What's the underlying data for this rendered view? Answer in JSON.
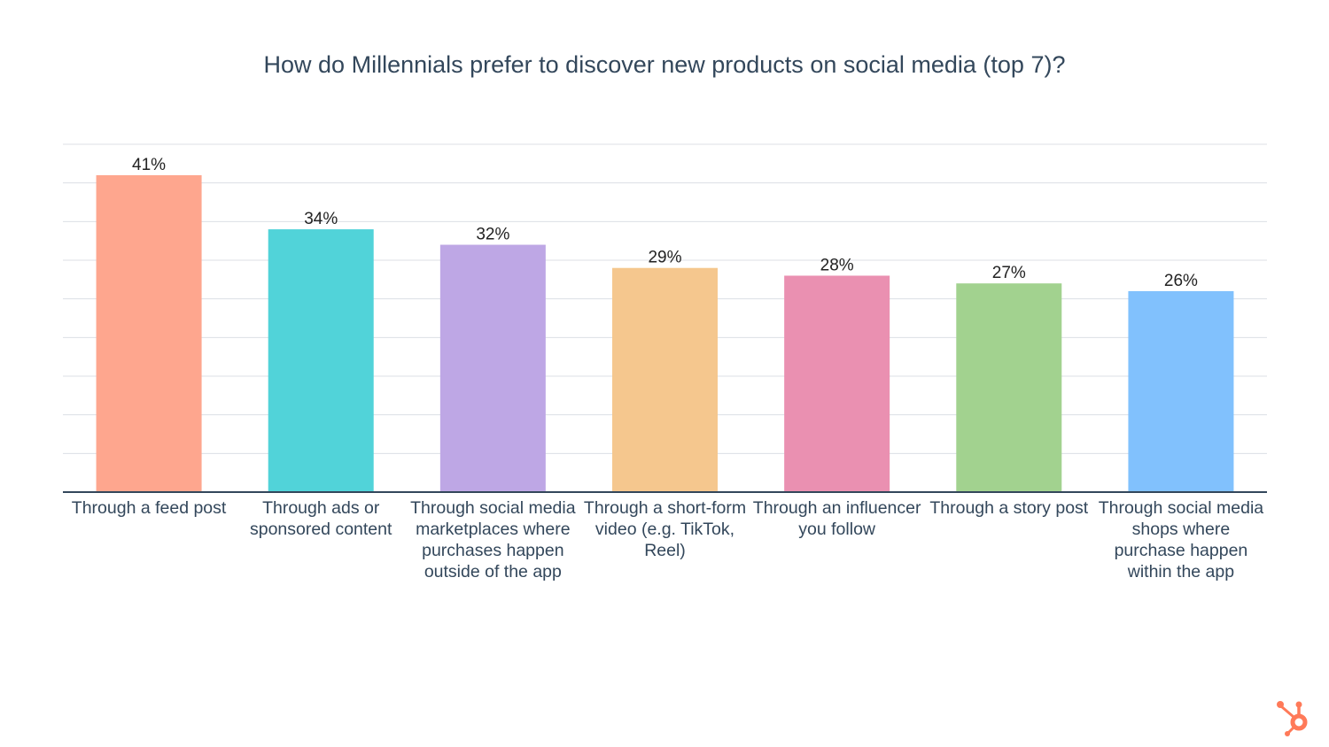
{
  "chart_data": {
    "type": "bar",
    "title": "How do Millennials prefer to discover new products on social media (top 7)?",
    "categories": [
      "Through a feed post",
      "Through ads or sponsored content",
      "Through social media marketplaces where purchases happen outside of the app",
      "Through a short-form video (e.g. TikTok, Reel)",
      "Through an influencer you follow",
      "Through a story post",
      "Through social media shops where purchase happen within the app"
    ],
    "values": [
      41,
      34,
      32,
      29,
      28,
      27,
      26
    ],
    "data_labels": [
      "41%",
      "34%",
      "32%",
      "29%",
      "28%",
      "27%",
      "26%"
    ],
    "colors": [
      "#FEA68E",
      "#51D3D9",
      "#BEA7E5",
      "#F5C78E",
      "#EA90B1",
      "#A2D28F",
      "#81C1FD"
    ],
    "ylim": [
      0,
      45
    ],
    "ytick_step": 5,
    "ytick_labels_shown": false,
    "grid": true,
    "xlabel": "",
    "ylabel": ""
  },
  "brand": {
    "logo": "hubspot-sprocket-icon",
    "logo_color": "#FF7A59"
  }
}
